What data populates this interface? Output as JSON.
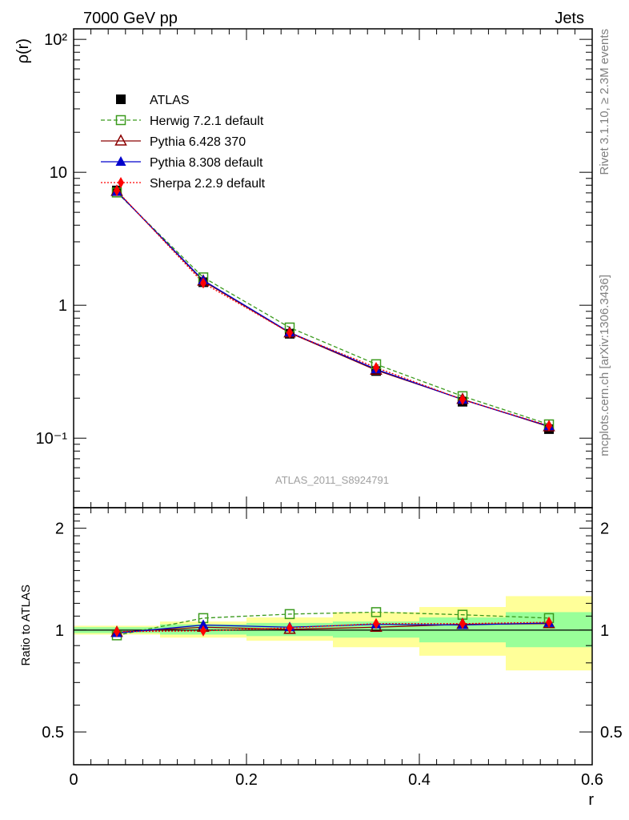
{
  "header": {
    "left": "7000 GeV pp",
    "right": "Jets"
  },
  "side_text": {
    "rivet": "Rivet 3.1.10, ≥ 2.3M events",
    "mcplots": "mcplots.cern.ch [arXiv:1306.3436]"
  },
  "watermark": "ATLAS_2011_S8924791",
  "colors": {
    "atlas": "#000000",
    "herwig": "#3a9a1c",
    "pythia6": "#8b0000",
    "pythia8": "#0000cc",
    "sherpa": "#ff0000",
    "band_yellow": "#ffff99",
    "band_green": "#99ff99"
  },
  "chart_data": [
    {
      "type": "line",
      "ylabel": "ρ(r)",
      "xlim": [
        0,
        0.6
      ],
      "ylim": [
        0.03,
        120
      ],
      "yscale": "log",
      "y_tick_labels": [
        "10⁻¹",
        "1",
        "10",
        "10²"
      ],
      "legend_position": "top-left",
      "x": [
        0.05,
        0.15,
        0.25,
        0.35,
        0.45,
        0.55
      ],
      "series": [
        {
          "name": "ATLAS",
          "style": "square-filled",
          "values": [
            7.3,
            1.49,
            0.61,
            0.32,
            0.188,
            0.117
          ]
        },
        {
          "name": "Herwig 7.2.1 default",
          "style": "open-square-dashed",
          "values": [
            7.05,
            1.62,
            0.68,
            0.36,
            0.207,
            0.127
          ]
        },
        {
          "name": "Pythia 6.428 370",
          "style": "open-triangle-solid",
          "values": [
            7.2,
            1.52,
            0.62,
            0.325,
            0.196,
            0.122
          ]
        },
        {
          "name": "Pythia 8.308 default",
          "style": "filled-triangle-solid",
          "values": [
            7.15,
            1.54,
            0.625,
            0.33,
            0.195,
            0.123
          ]
        },
        {
          "name": "Sherpa 2.2.9 default",
          "style": "diamond-dotted",
          "values": [
            7.28,
            1.47,
            0.62,
            0.34,
            0.195,
            0.124
          ]
        }
      ]
    },
    {
      "type": "line",
      "xlabel": "r",
      "ylabel": "Ratio to ATLAS",
      "xlim": [
        0,
        0.6
      ],
      "ylim": [
        0.4,
        2.3
      ],
      "yscale": "log",
      "x_tick_labels": [
        "0",
        "0.2",
        "0.4",
        "0.6"
      ],
      "y_tick_labels": [
        "0.5",
        "1",
        "2"
      ],
      "bands": {
        "edges": [
          0,
          0.1,
          0.2,
          0.3,
          0.4,
          0.5,
          0.6
        ],
        "yellow": [
          [
            0.97,
            1.03
          ],
          [
            0.95,
            1.06
          ],
          [
            0.93,
            1.09
          ],
          [
            0.89,
            1.13
          ],
          [
            0.84,
            1.17
          ],
          [
            0.76,
            1.26
          ]
        ],
        "green": [
          [
            0.98,
            1.02
          ],
          [
            0.97,
            1.04
          ],
          [
            0.96,
            1.05
          ],
          [
            0.95,
            1.06
          ],
          [
            0.92,
            1.09
          ],
          [
            0.89,
            1.13
          ]
        ]
      },
      "x": [
        0.05,
        0.15,
        0.25,
        0.35,
        0.45,
        0.55
      ],
      "series": [
        {
          "name": "Herwig 7.2.1 default",
          "values": [
            0.965,
            1.085,
            1.115,
            1.13,
            1.11,
            1.085
          ]
        },
        {
          "name": "Pythia 6.428 370",
          "values": [
            0.985,
            1.02,
            1.005,
            1.02,
            1.04,
            1.045
          ]
        },
        {
          "name": "Pythia 8.308 default",
          "values": [
            0.98,
            1.035,
            1.02,
            1.04,
            1.035,
            1.05
          ]
        },
        {
          "name": "Sherpa 2.2.9 default",
          "values": [
            0.99,
            0.995,
            1.015,
            1.045,
            1.045,
            1.055
          ]
        }
      ]
    }
  ]
}
